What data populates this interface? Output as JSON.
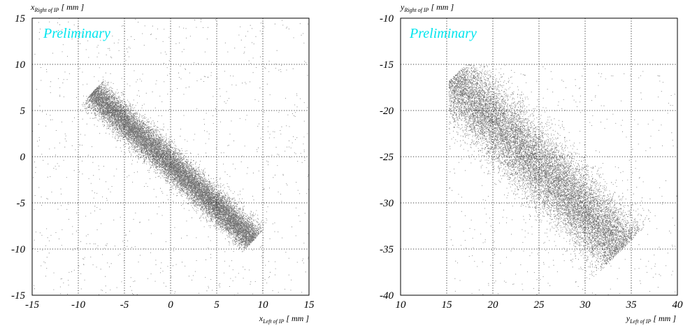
{
  "chart_data": [
    {
      "type": "scatter",
      "title": "",
      "watermark": "Preliminary",
      "watermark_color": "#00e5ee",
      "xlabel": {
        "var": "x",
        "sub": "Left of IP",
        "unit": "[ mm ]"
      },
      "ylabel": {
        "var": "x",
        "sub": "Right of IP",
        "unit": "[ mm ]"
      },
      "xlim": [
        -15,
        15
      ],
      "ylim": [
        -15,
        15
      ],
      "xticks": [
        -15,
        -10,
        -5,
        0,
        5,
        10,
        15
      ],
      "yticks": [
        -15,
        -10,
        -5,
        0,
        5,
        10,
        15
      ],
      "xtick_labels": [
        "-15",
        "-10",
        "-5",
        "0",
        "5",
        "10",
        "15"
      ],
      "ytick_labels": [
        "-15",
        "-10",
        "-5",
        "0",
        "5",
        "10",
        "15"
      ],
      "grid": true,
      "point_color": "#000000",
      "series": [
        {
          "distribution": "band",
          "center_line": [
            [
              -8.5,
              7.0
            ],
            [
              9.0,
              -9.0
            ]
          ],
          "perpendicular_sigma": 0.75,
          "points": 16000,
          "background_points": 900,
          "notes_visible": false
        }
      ],
      "highlights": [
        {
          "density": "high",
          "x": [
            -3.0,
            3.0
          ]
        }
      ]
    },
    {
      "type": "scatter",
      "title": "",
      "watermark": "Preliminary",
      "watermark_color": "#00e5ee",
      "xlabel": {
        "var": "y",
        "sub": "Left of IP",
        "unit": "[ mm ]"
      },
      "ylabel": {
        "var": "y",
        "sub": "Right of IP",
        "unit": "[ mm ]"
      },
      "xlim": [
        10,
        40
      ],
      "ylim": [
        -40,
        -10
      ],
      "xticks": [
        10,
        15,
        20,
        25,
        30,
        35,
        40
      ],
      "yticks": [
        -40,
        -35,
        -30,
        -25,
        -20,
        -15,
        -10
      ],
      "xtick_labels": [
        "10",
        "15",
        "20",
        "25",
        "30",
        "35",
        "40"
      ],
      "ytick_labels": [
        "-40",
        "-35",
        "-30",
        "-25",
        "-20",
        "-15",
        "-10"
      ],
      "grid": true,
      "point_color": "#000000",
      "series": [
        {
          "distribution": "band",
          "center_line": [
            [
              15.5,
              -16.5
            ],
            [
              34.0,
              -35.0
            ]
          ],
          "perpendicular_sigma": 1.6,
          "points": 15000,
          "background_points": 700,
          "x_min_cut": 15.2,
          "y_max_cut": -15.0
        }
      ],
      "highlights": [
        {
          "density": "high",
          "x": [
            15.5,
            25.0
          ]
        }
      ]
    }
  ]
}
